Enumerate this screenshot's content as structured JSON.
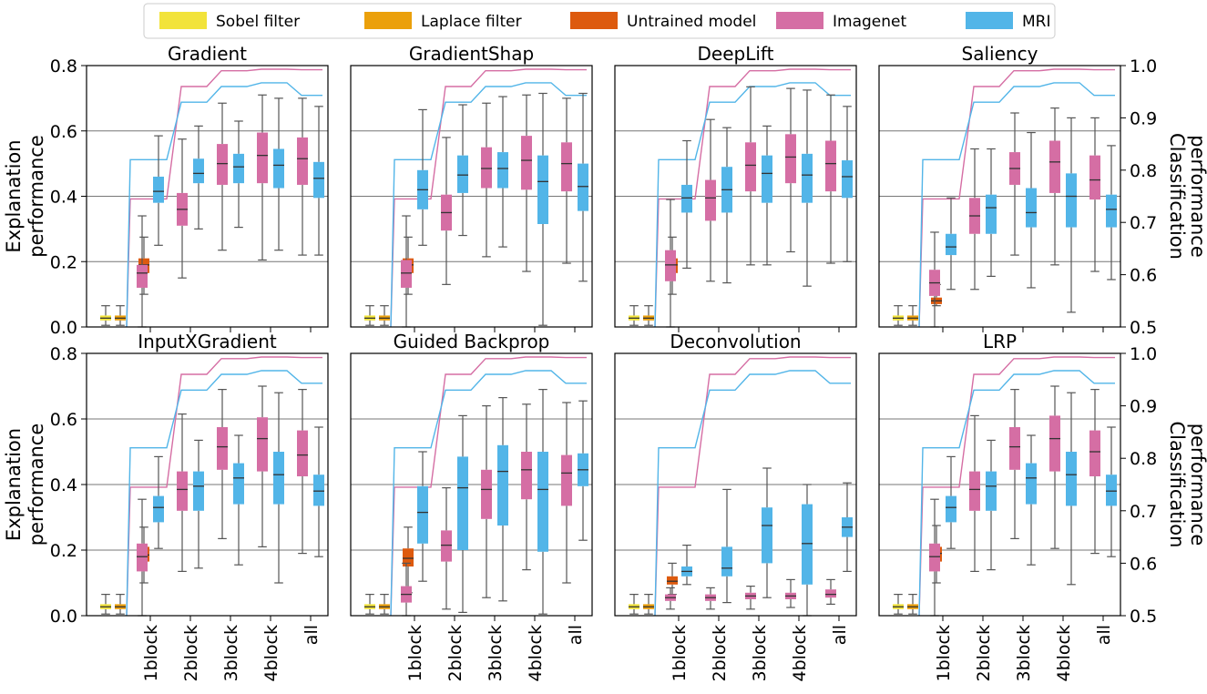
{
  "chart_data": {
    "type": "box",
    "legend": [
      {
        "label": "Sobel filter",
        "color": "#F2E33A"
      },
      {
        "label": "Laplace filter",
        "color": "#EBA00B"
      },
      {
        "label": "Untrained model",
        "color": "#DD5A0E"
      },
      {
        "label": "Imagenet",
        "color": "#D56EA4"
      },
      {
        "label": "MRI",
        "color": "#52B5E8"
      }
    ],
    "left_axis": {
      "label": "Explanation performance",
      "ylim": [
        0.0,
        0.8
      ],
      "ticks": [
        "0.0",
        "0.2",
        "0.4",
        "0.6",
        "0.8"
      ]
    },
    "right_axis": {
      "label": "Classification performance",
      "ylim": [
        0.5,
        1.0
      ],
      "ticks": [
        "0.5",
        "0.6",
        "0.7",
        "0.8",
        "0.9",
        "1.0"
      ]
    },
    "categories": [
      "1block",
      "2block",
      "3block",
      "4block",
      "all"
    ],
    "classification_curves": {
      "imagenet": [
        0.745,
        0.96,
        0.99,
        0.993,
        0.992
      ],
      "mri": [
        0.82,
        0.93,
        0.96,
        0.967,
        0.943
      ]
    },
    "panels": [
      {
        "title": "Gradient",
        "sobel": [
          0.005,
          0.02,
          0.027,
          0.035,
          0.065
        ],
        "laplace": [
          0.005,
          0.02,
          0.027,
          0.035,
          0.065
        ],
        "untrained": [
          0.1,
          0.165,
          0.19,
          0.21,
          0.275
        ],
        "imagenet": [
          [
            0.0,
            0.12,
            0.165,
            0.19,
            0.34
          ],
          [
            0.15,
            0.31,
            0.36,
            0.41,
            0.575
          ],
          [
            0.235,
            0.435,
            0.5,
            0.56,
            0.685
          ],
          [
            0.205,
            0.44,
            0.525,
            0.595,
            0.71
          ],
          [
            0.22,
            0.435,
            0.515,
            0.58,
            0.7
          ]
        ],
        "mri": [
          [
            0.25,
            0.38,
            0.415,
            0.46,
            0.585
          ],
          [
            0.3,
            0.44,
            0.47,
            0.515,
            0.615
          ],
          [
            0.305,
            0.44,
            0.49,
            0.53,
            0.63
          ],
          [
            0.235,
            0.425,
            0.495,
            0.545,
            0.7
          ],
          [
            0.22,
            0.395,
            0.455,
            0.505,
            0.675
          ]
        ]
      },
      {
        "title": "GradientShap",
        "sobel": [
          0.005,
          0.02,
          0.027,
          0.035,
          0.065
        ],
        "laplace": [
          0.005,
          0.02,
          0.027,
          0.035,
          0.065
        ],
        "untrained": [
          0.1,
          0.165,
          0.19,
          0.21,
          0.275
        ],
        "imagenet": [
          [
            0.0,
            0.12,
            0.165,
            0.205,
            0.34
          ],
          [
            0.13,
            0.295,
            0.35,
            0.405,
            0.58
          ],
          [
            0.215,
            0.425,
            0.485,
            0.55,
            0.685
          ],
          [
            0.17,
            0.42,
            0.51,
            0.585,
            0.71
          ],
          [
            0.195,
            0.415,
            0.5,
            0.565,
            0.7
          ]
        ],
        "mri": [
          [
            0.25,
            0.36,
            0.42,
            0.48,
            0.665
          ],
          [
            0.28,
            0.41,
            0.465,
            0.525,
            0.68
          ],
          [
            0.245,
            0.425,
            0.485,
            0.535,
            0.705
          ],
          [
            0.005,
            0.315,
            0.445,
            0.525,
            0.715
          ],
          [
            0.14,
            0.355,
            0.43,
            0.5,
            0.715
          ]
        ]
      },
      {
        "title": "DeepLift",
        "sobel": [
          0.005,
          0.02,
          0.027,
          0.035,
          0.065
        ],
        "laplace": [
          0.005,
          0.02,
          0.027,
          0.035,
          0.065
        ],
        "untrained": [
          0.1,
          0.165,
          0.19,
          0.21,
          0.275
        ],
        "imagenet": [
          [
            0.0,
            0.14,
            0.19,
            0.235,
            0.39
          ],
          [
            0.14,
            0.325,
            0.395,
            0.45,
            0.635
          ],
          [
            0.19,
            0.415,
            0.495,
            0.565,
            0.735
          ],
          [
            0.23,
            0.44,
            0.52,
            0.59,
            0.73
          ],
          [
            0.195,
            0.415,
            0.5,
            0.57,
            0.71
          ]
        ],
        "mri": [
          [
            0.18,
            0.35,
            0.395,
            0.435,
            0.57
          ],
          [
            0.135,
            0.35,
            0.42,
            0.49,
            0.61
          ],
          [
            0.19,
            0.38,
            0.47,
            0.525,
            0.615
          ],
          [
            0.125,
            0.38,
            0.465,
            0.53,
            0.725
          ],
          [
            0.2,
            0.395,
            0.46,
            0.51,
            0.675
          ]
        ]
      },
      {
        "title": "Saliency",
        "sobel": [
          0.005,
          0.02,
          0.027,
          0.035,
          0.065
        ],
        "laplace": [
          0.005,
          0.02,
          0.027,
          0.035,
          0.065
        ],
        "untrained": [
          0.065,
          0.07,
          0.08,
          0.09,
          0.13
        ],
        "imagenet": [
          [
            0.0,
            0.095,
            0.135,
            0.175,
            0.29
          ],
          [
            0.115,
            0.285,
            0.34,
            0.395,
            0.545
          ],
          [
            0.22,
            0.435,
            0.485,
            0.535,
            0.655
          ],
          [
            0.19,
            0.41,
            0.505,
            0.57,
            0.67
          ],
          [
            0.17,
            0.39,
            0.45,
            0.525,
            0.64
          ]
        ],
        "mri": [
          [
            0.115,
            0.22,
            0.245,
            0.285,
            0.395
          ],
          [
            0.155,
            0.285,
            0.365,
            0.405,
            0.545
          ],
          [
            0.12,
            0.305,
            0.35,
            0.425,
            0.595
          ],
          [
            0.045,
            0.305,
            0.4,
            0.47,
            0.64
          ],
          [
            0.145,
            0.305,
            0.36,
            0.405,
            0.555
          ]
        ]
      },
      {
        "title": "InputXGradient",
        "sobel": [
          0.005,
          0.02,
          0.027,
          0.035,
          0.065
        ],
        "laplace": [
          0.005,
          0.02,
          0.027,
          0.035,
          0.065
        ],
        "untrained": [
          0.1,
          0.165,
          0.185,
          0.21,
          0.27
        ],
        "imagenet": [
          [
            0.0,
            0.135,
            0.18,
            0.22,
            0.355
          ],
          [
            0.135,
            0.32,
            0.385,
            0.44,
            0.615
          ],
          [
            0.235,
            0.445,
            0.515,
            0.575,
            0.69
          ],
          [
            0.21,
            0.44,
            0.54,
            0.605,
            0.7
          ],
          [
            0.19,
            0.425,
            0.49,
            0.565,
            0.69
          ]
        ],
        "mri": [
          [
            0.205,
            0.285,
            0.33,
            0.365,
            0.485
          ],
          [
            0.145,
            0.32,
            0.395,
            0.44,
            0.535
          ],
          [
            0.155,
            0.34,
            0.42,
            0.465,
            0.55
          ],
          [
            0.1,
            0.34,
            0.43,
            0.5,
            0.68
          ],
          [
            0.18,
            0.335,
            0.38,
            0.43,
            0.575
          ]
        ]
      },
      {
        "title": "Guided Backprop",
        "sobel": [
          0.005,
          0.02,
          0.027,
          0.035,
          0.065
        ],
        "laplace": [
          0.005,
          0.02,
          0.027,
          0.035,
          0.065
        ],
        "untrained": [
          0.07,
          0.15,
          0.175,
          0.205,
          0.27
        ],
        "imagenet": [
          [
            0.0,
            0.04,
            0.065,
            0.09,
            0.16
          ],
          [
            0.02,
            0.165,
            0.215,
            0.26,
            0.39
          ],
          [
            0.055,
            0.295,
            0.385,
            0.445,
            0.64
          ],
          [
            0.14,
            0.355,
            0.445,
            0.5,
            0.645
          ],
          [
            0.1,
            0.335,
            0.435,
            0.49,
            0.65
          ]
        ],
        "mri": [
          [
            0.105,
            0.22,
            0.315,
            0.395,
            0.5
          ],
          [
            0.01,
            0.2,
            0.39,
            0.485,
            0.61
          ],
          [
            0.045,
            0.275,
            0.44,
            0.52,
            0.665
          ],
          [
            0.005,
            0.195,
            0.385,
            0.5,
            0.69
          ],
          [
            0.23,
            0.395,
            0.445,
            0.495,
            0.655
          ]
        ]
      },
      {
        "title": "Deconvolution",
        "sobel": [
          0.005,
          0.02,
          0.027,
          0.035,
          0.065
        ],
        "laplace": [
          0.005,
          0.02,
          0.027,
          0.035,
          0.065
        ],
        "untrained": [
          0.065,
          0.095,
          0.105,
          0.12,
          0.16
        ],
        "imagenet": [
          [
            0.02,
            0.045,
            0.055,
            0.065,
            0.085
          ],
          [
            0.02,
            0.045,
            0.055,
            0.065,
            0.085
          ],
          [
            0.02,
            0.05,
            0.06,
            0.07,
            0.09
          ],
          [
            0.025,
            0.05,
            0.06,
            0.07,
            0.11
          ],
          [
            0.035,
            0.055,
            0.065,
            0.08,
            0.11
          ]
        ],
        "mri": [
          [
            0.095,
            0.12,
            0.135,
            0.15,
            0.215
          ],
          [
            0.04,
            0.12,
            0.145,
            0.21,
            0.385
          ],
          [
            0.055,
            0.16,
            0.275,
            0.33,
            0.45
          ],
          [
            0.0,
            0.095,
            0.22,
            0.34,
            0.4
          ],
          [
            0.135,
            0.24,
            0.27,
            0.3,
            0.405
          ]
        ]
      },
      {
        "title": "LRP",
        "sobel": [
          0.005,
          0.02,
          0.027,
          0.035,
          0.065
        ],
        "laplace": [
          0.005,
          0.02,
          0.027,
          0.035,
          0.065
        ],
        "untrained": [
          0.1,
          0.165,
          0.19,
          0.21,
          0.275
        ],
        "imagenet": [
          [
            0.0,
            0.135,
            0.18,
            0.22,
            0.355
          ],
          [
            0.135,
            0.32,
            0.385,
            0.44,
            0.61
          ],
          [
            0.235,
            0.445,
            0.515,
            0.575,
            0.69
          ],
          [
            0.205,
            0.44,
            0.54,
            0.61,
            0.7
          ],
          [
            0.19,
            0.425,
            0.5,
            0.565,
            0.69
          ]
        ],
        "mri": [
          [
            0.205,
            0.285,
            0.33,
            0.365,
            0.485
          ],
          [
            0.14,
            0.32,
            0.395,
            0.44,
            0.535
          ],
          [
            0.155,
            0.34,
            0.42,
            0.465,
            0.55
          ],
          [
            0.095,
            0.335,
            0.43,
            0.5,
            0.68
          ],
          [
            0.18,
            0.335,
            0.38,
            0.43,
            0.575
          ]
        ]
      }
    ]
  }
}
